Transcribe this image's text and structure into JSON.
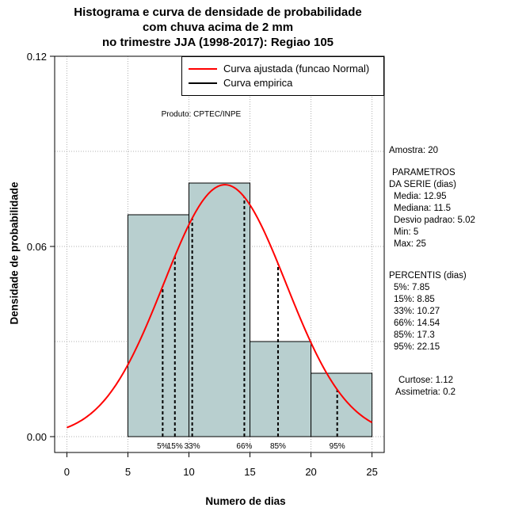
{
  "title_lines": [
    "Histograma e curva de densidade de probabilidade",
    "com chuva acima de 2 mm",
    "no trimestre JJA (1998-2017): Regiao 105"
  ],
  "product_label": "Produto: CPTEC/INPE",
  "legend": {
    "fitted": "Curva ajustada (funcao Normal)",
    "empirical": "Curva empirica"
  },
  "sidebar": {
    "amostra": "Amostra: 20",
    "param_title_1": "PARAMETROS",
    "param_title_2": "DA SERIE (dias)",
    "media": "Media: 12.95",
    "mediana": "Mediana: 11.5",
    "desvio": "Desvio padrao: 5.02",
    "min": "Min: 5",
    "max": "Max: 25",
    "perc_title": "PERCENTIS (dias)",
    "p5": "5%: 7.85",
    "p15": "15%: 8.85",
    "p33": "33%: 10.27",
    "p66": "66%: 14.54",
    "p85": "85%: 17.3",
    "p95": "95%: 22.15",
    "curtose": "Curtose: 1.12",
    "assimetria": "Assimetria: 0.2"
  },
  "colors": {
    "bars": "#b8cfcf",
    "curve": "#ff0000",
    "grid": "#b0b0b0"
  },
  "chart_data": {
    "type": "bar",
    "title": "Histograma e curva de densidade de probabilidade com chuva acima de 2 mm no trimestre JJA (1998-2017): Regiao 105",
    "xlabel": "Numero de dias",
    "ylabel": "Densidade de probabilidade",
    "xlim": [
      -1,
      26
    ],
    "ylim": [
      -0.005,
      0.12
    ],
    "xticks": [
      0,
      5,
      10,
      15,
      20,
      25
    ],
    "yticks": [
      0.0,
      0.06,
      0.12
    ],
    "ytick_labels": [
      "0.00",
      "0.06",
      "0.12"
    ],
    "bins": [
      {
        "start": 5,
        "end": 10,
        "density": 0.07
      },
      {
        "start": 10,
        "end": 15,
        "density": 0.08
      },
      {
        "start": 15,
        "end": 20,
        "density": 0.03
      },
      {
        "start": 20,
        "end": 25,
        "density": 0.02
      }
    ],
    "normal_fit": {
      "mean": 12.95,
      "sd": 5.02,
      "x_from": 0,
      "x_to": 25
    },
    "percentiles": [
      {
        "label": "5%",
        "value": 7.85
      },
      {
        "label": "15%",
        "value": 8.85
      },
      {
        "label": "33%",
        "value": 10.27
      },
      {
        "label": "66%",
        "value": 14.54
      },
      {
        "label": "85%",
        "value": 17.3
      },
      {
        "label": "95%",
        "value": 22.15
      }
    ],
    "grid": true,
    "legend_position": "top-right"
  }
}
